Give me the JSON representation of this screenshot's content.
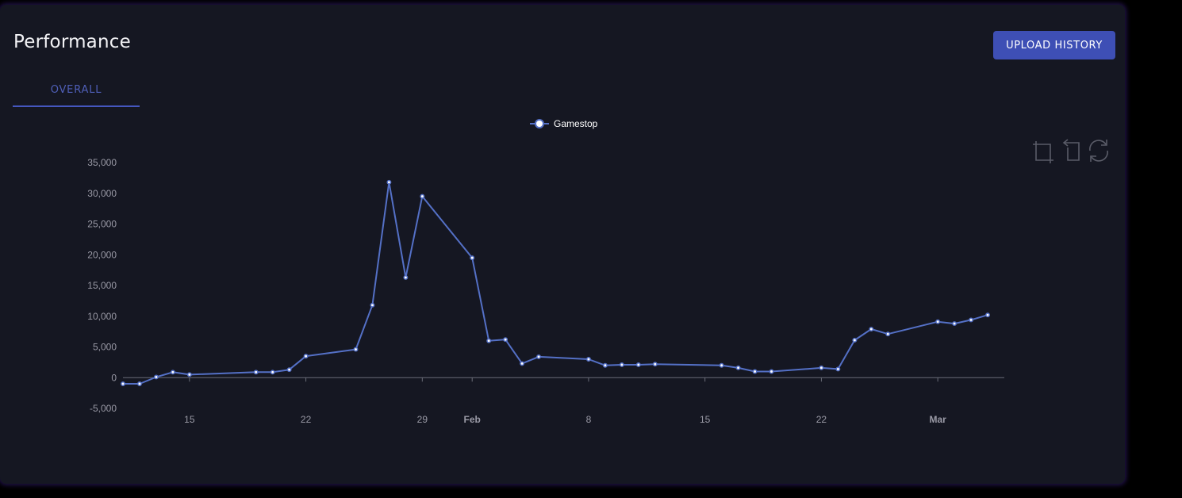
{
  "header": {
    "title": "Performance",
    "upload_label": "UPLOAD HISTORY"
  },
  "tabs": [
    {
      "label": "OVERALL",
      "active": true
    }
  ],
  "toolbox": [
    "crop-icon",
    "undo-icon",
    "refresh-icon"
  ],
  "colors": {
    "series": "#5470c6",
    "accent": "#3e4fb5",
    "background": "#151722"
  },
  "chart_data": {
    "type": "line",
    "legend": {
      "position": "top-center",
      "entries": [
        "Gamestop"
      ]
    },
    "ylim": [
      -5000,
      35000
    ],
    "y_ticks": [
      "35,000",
      "30,000",
      "25,000",
      "20,000",
      "15,000",
      "10,000",
      "5,000",
      "0",
      "-5,000"
    ],
    "x_range": [
      "2021-01-11",
      "2021-03-05"
    ],
    "x_ticks": [
      {
        "date": "2021-01-15",
        "label": "15",
        "bold": false
      },
      {
        "date": "2021-01-22",
        "label": "22",
        "bold": false
      },
      {
        "date": "2021-01-29",
        "label": "29",
        "bold": false
      },
      {
        "date": "2021-02-01",
        "label": "Feb",
        "bold": true
      },
      {
        "date": "2021-02-08",
        "label": "8",
        "bold": false
      },
      {
        "date": "2021-02-15",
        "label": "15",
        "bold": false
      },
      {
        "date": "2021-02-22",
        "label": "22",
        "bold": false
      },
      {
        "date": "2021-03-01",
        "label": "Mar",
        "bold": true
      }
    ],
    "series": [
      {
        "name": "Gamestop",
        "points": [
          [
            "2021-01-11",
            -1000
          ],
          [
            "2021-01-12",
            -1000
          ],
          [
            "2021-01-13",
            100
          ],
          [
            "2021-01-14",
            900
          ],
          [
            "2021-01-15",
            500
          ],
          [
            "2021-01-19",
            900
          ],
          [
            "2021-01-20",
            900
          ],
          [
            "2021-01-21",
            1300
          ],
          [
            "2021-01-22",
            3500
          ],
          [
            "2021-01-25",
            4600
          ],
          [
            "2021-01-26",
            11800
          ],
          [
            "2021-01-27",
            31800
          ],
          [
            "2021-01-28",
            16300
          ],
          [
            "2021-01-29",
            29500
          ],
          [
            "2021-02-01",
            19500
          ],
          [
            "2021-02-02",
            6000
          ],
          [
            "2021-02-03",
            6200
          ],
          [
            "2021-02-04",
            2300
          ],
          [
            "2021-02-05",
            3400
          ],
          [
            "2021-02-08",
            3000
          ],
          [
            "2021-02-09",
            2000
          ],
          [
            "2021-02-10",
            2100
          ],
          [
            "2021-02-11",
            2100
          ],
          [
            "2021-02-12",
            2200
          ],
          [
            "2021-02-16",
            2000
          ],
          [
            "2021-02-17",
            1600
          ],
          [
            "2021-02-18",
            1000
          ],
          [
            "2021-02-19",
            1000
          ],
          [
            "2021-02-22",
            1600
          ],
          [
            "2021-02-23",
            1400
          ],
          [
            "2021-02-24",
            6100
          ],
          [
            "2021-02-25",
            7900
          ],
          [
            "2021-02-26",
            7100
          ],
          [
            "2021-03-01",
            9100
          ],
          [
            "2021-03-02",
            8800
          ],
          [
            "2021-03-03",
            9400
          ],
          [
            "2021-03-04",
            10200
          ]
        ]
      }
    ]
  }
}
